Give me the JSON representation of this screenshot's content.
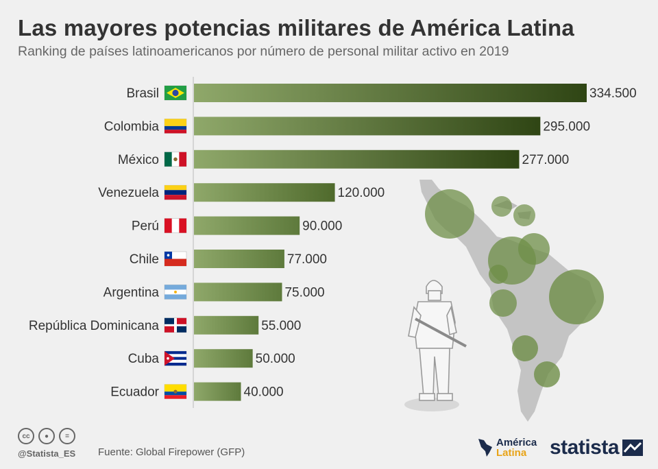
{
  "header": {
    "title": "Las mayores potencias militares de América Latina",
    "subtitle": "Ranking de países latinoamericanos por número de personal militar activo en 2019"
  },
  "chart_data": {
    "type": "bar",
    "orientation": "horizontal",
    "title": "Las mayores potencias militares de América Latina",
    "subtitle": "Ranking de países latinoamericanos por número de personal militar activo en 2019",
    "xlabel": "",
    "ylabel": "",
    "xlim": [
      0,
      334500
    ],
    "categories": [
      "Brasil",
      "Colombia",
      "México",
      "Venezuela",
      "Perú",
      "Chile",
      "Argentina",
      "República Dominicana",
      "Cuba",
      "Ecuador"
    ],
    "values": [
      334500,
      295000,
      277000,
      120000,
      90000,
      77000,
      75000,
      55000,
      50000,
      40000
    ],
    "value_labels": [
      "334.500",
      "295.000",
      "277.000",
      "120.000",
      "90.000",
      "77.000",
      "75.000",
      "55.000",
      "50.000",
      "40.000"
    ],
    "flag_icons": [
      "brazil-flag-icon",
      "colombia-flag-icon",
      "mexico-flag-icon",
      "venezuela-flag-icon",
      "peru-flag-icon",
      "chile-flag-icon",
      "argentina-flag-icon",
      "dominican-republic-flag-icon",
      "cuba-flag-icon",
      "ecuador-flag-icon"
    ],
    "colors": {
      "bar_light": "#8fa86a",
      "bar_dark": "#2f4514",
      "bar_mid": "#5e7a3c"
    }
  },
  "illustration": {
    "map_icon": "latin-america-map-icon",
    "soldier_icon": "soldier-icon",
    "bubble_color": "#6f8f48"
  },
  "footer": {
    "cc_icons": [
      "cc-icon",
      "by-icon",
      "nd-icon"
    ],
    "handle": "@Statista_ES",
    "source": "Fuente: Global Firepower (GFP)",
    "partner_line1": "América",
    "partner_line2": "Latina",
    "brand": "statista"
  }
}
